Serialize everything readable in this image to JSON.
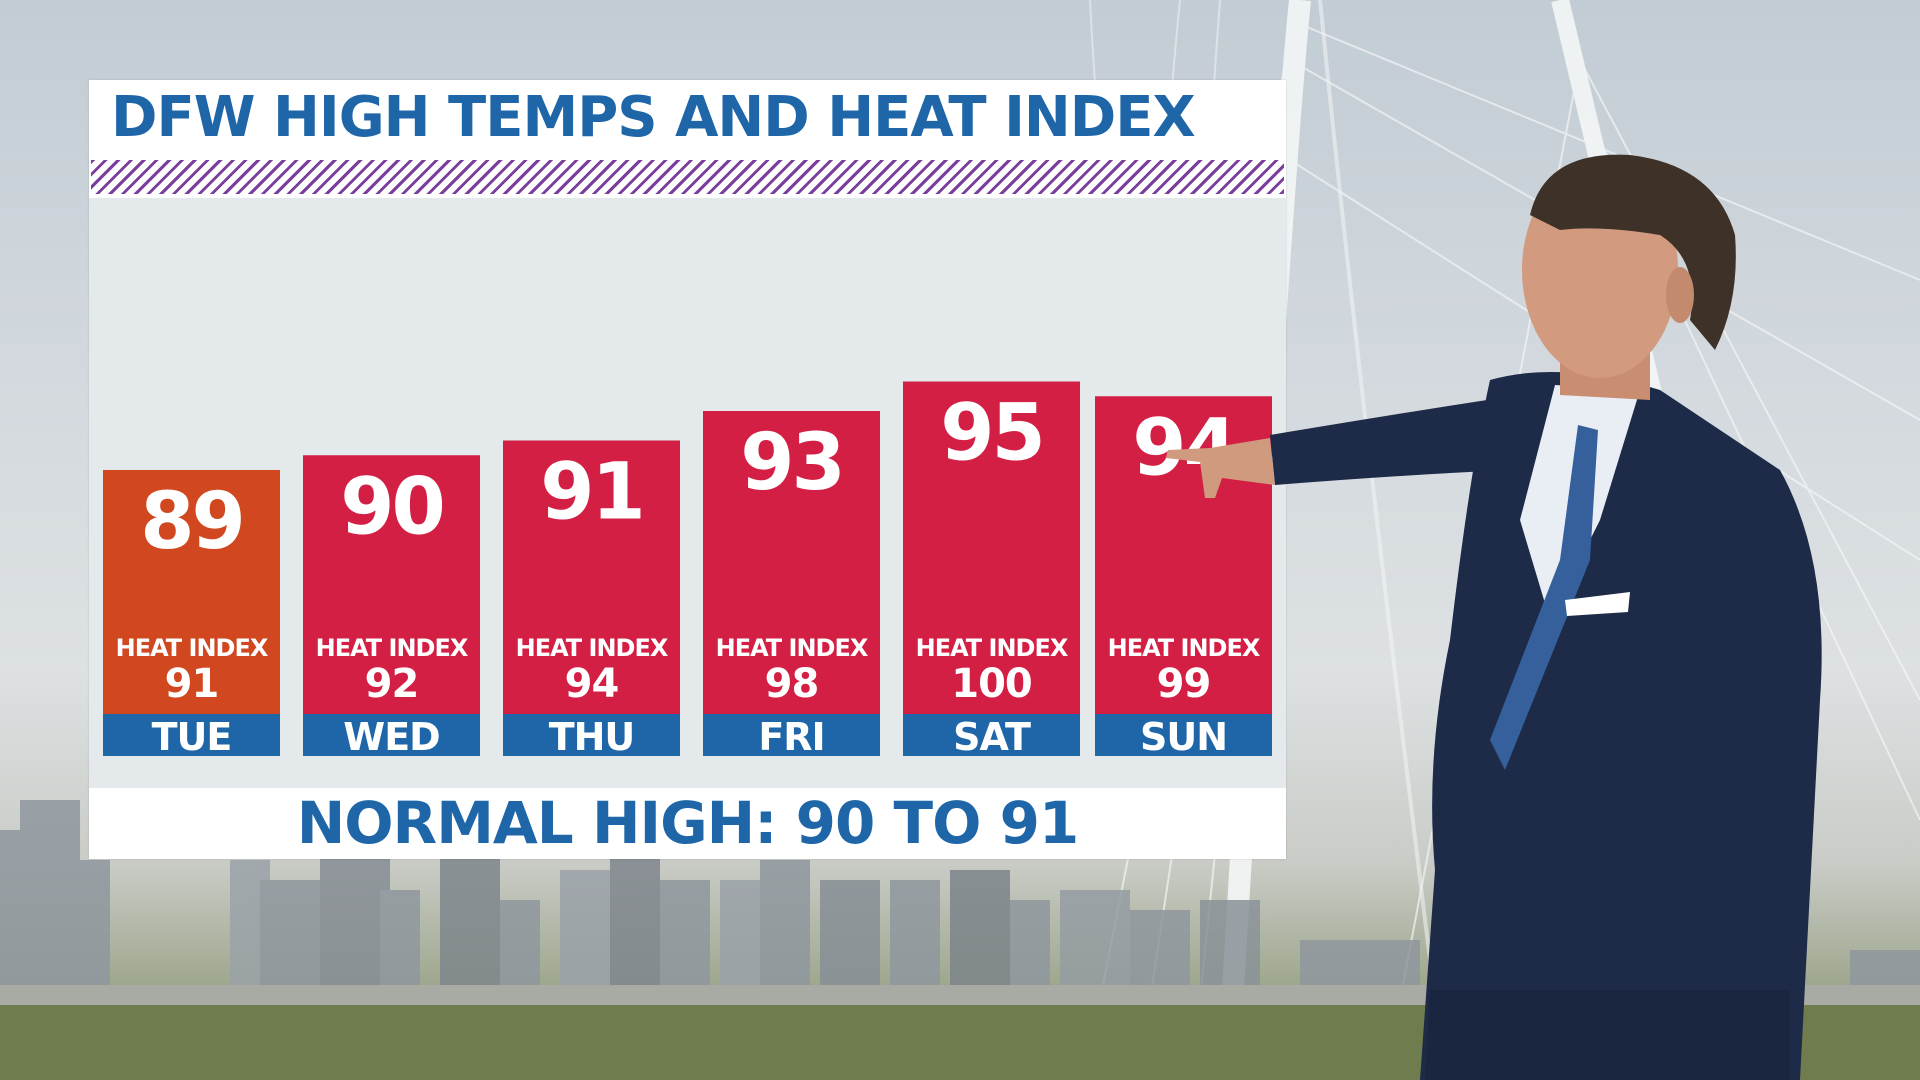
{
  "title": "DFW HIGH TEMPS AND HEAT INDEX",
  "heat_index_label": "HEAT INDEX",
  "normal_high": "NORMAL HIGH: 90 TO 91",
  "colors": {
    "title_blue": "#1e66a8",
    "bar_red": "#d41f45",
    "bar_orange": "#d1471f",
    "day_band_blue": "#1e66a8",
    "stripe_purple": "#7a3e9c"
  },
  "chart_data": {
    "type": "bar",
    "title": "DFW HIGH TEMPS AND HEAT INDEX",
    "categories": [
      "TUE",
      "WED",
      "THU",
      "FRI",
      "SAT",
      "SUN"
    ],
    "series": [
      {
        "name": "",
        "values": [
          89,
          90,
          91,
          93,
          95,
          94
        ]
      },
      {
        "name": "HEAT INDEX",
        "values": [
          91,
          92,
          94,
          98,
          100,
          99
        ]
      }
    ],
    "bar_colors": [
      "#d1471f",
      "#d41f45",
      "#d41f45",
      "#d41f45",
      "#d41f45",
      "#d41f45"
    ],
    "grid": false,
    "legend": "none"
  }
}
